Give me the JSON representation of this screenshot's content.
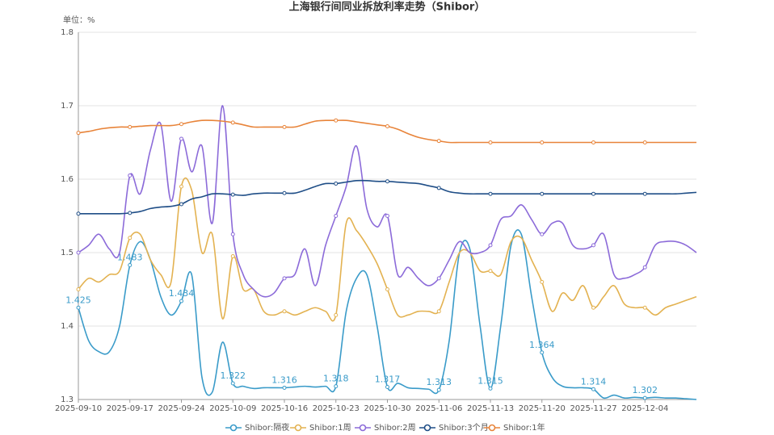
{
  "chart_data": {
    "type": "line",
    "title": "上海银行间同业拆放利率走势（Shibor）",
    "y_unit_label": "单位：%",
    "categories": [
      "2025-09-10",
      null,
      null,
      null,
      null,
      "2025-09-17",
      null,
      null,
      null,
      null,
      "2025-09-24",
      null,
      null,
      null,
      null,
      "2025-10-09",
      null,
      null,
      null,
      null,
      "2025-10-16",
      null,
      null,
      null,
      null,
      "2025-10-23",
      null,
      null,
      null,
      null,
      "2025-10-30",
      null,
      null,
      null,
      null,
      "2025-11-06",
      null,
      null,
      null,
      null,
      "2025-11-13",
      null,
      null,
      null,
      null,
      "2025-11-20",
      null,
      null,
      null,
      null,
      "2025-11-27",
      null,
      null,
      null,
      null,
      "2025-12-04",
      null,
      null,
      null,
      null,
      null
    ],
    "ylim": [
      1.3,
      1.8
    ],
    "yticks": [
      1.3,
      1.4,
      1.5,
      1.6,
      1.7,
      1.8
    ],
    "grid": true,
    "smooth": true,
    "legend": "bottom",
    "series": [
      {
        "name": "Shibor:隔夜",
        "color": "#3a9bc9",
        "labels": true,
        "values": [
          1.425,
          1.38,
          1.365,
          1.365,
          1.4,
          1.483,
          1.515,
          1.49,
          1.44,
          1.415,
          1.434,
          1.47,
          1.33,
          1.31,
          1.378,
          1.322,
          1.318,
          1.315,
          1.316,
          1.316,
          1.316,
          1.317,
          1.318,
          1.317,
          1.318,
          1.318,
          1.42,
          1.465,
          1.47,
          1.4,
          1.317,
          1.322,
          1.316,
          1.315,
          1.314,
          1.313,
          1.38,
          1.5,
          1.505,
          1.4,
          1.315,
          1.4,
          1.51,
          1.525,
          1.44,
          1.364,
          1.33,
          1.318,
          1.316,
          1.316,
          1.314,
          1.302,
          1.306,
          1.302,
          1.303,
          1.302,
          1.303,
          1.302,
          1.302,
          1.301,
          1.3
        ]
      },
      {
        "name": "Shibor:1周",
        "color": "#e3b251",
        "values": [
          1.45,
          1.465,
          1.46,
          1.47,
          1.475,
          1.52,
          1.525,
          1.49,
          1.47,
          1.46,
          1.59,
          1.585,
          1.5,
          1.525,
          1.41,
          1.495,
          1.45,
          1.45,
          1.42,
          1.415,
          1.42,
          1.415,
          1.42,
          1.425,
          1.42,
          1.415,
          1.54,
          1.53,
          1.51,
          1.485,
          1.45,
          1.415,
          1.415,
          1.42,
          1.42,
          1.42,
          1.46,
          1.5,
          1.5,
          1.475,
          1.475,
          1.47,
          1.515,
          1.52,
          1.49,
          1.46,
          1.42,
          1.445,
          1.435,
          1.455,
          1.425,
          1.44,
          1.455,
          1.43,
          1.425,
          1.425,
          1.415,
          1.425,
          1.43,
          1.435,
          1.44
        ]
      },
      {
        "name": "Shibor:2周",
        "color": "#8c6bd9",
        "values": [
          1.5,
          1.51,
          1.525,
          1.505,
          1.5,
          1.605,
          1.58,
          1.64,
          1.675,
          1.57,
          1.655,
          1.61,
          1.645,
          1.54,
          1.7,
          1.525,
          1.47,
          1.45,
          1.44,
          1.445,
          1.465,
          1.47,
          1.505,
          1.455,
          1.51,
          1.55,
          1.59,
          1.645,
          1.56,
          1.535,
          1.55,
          1.47,
          1.48,
          1.465,
          1.455,
          1.465,
          1.49,
          1.515,
          1.5,
          1.5,
          1.51,
          1.545,
          1.55,
          1.565,
          1.545,
          1.525,
          1.54,
          1.54,
          1.51,
          1.505,
          1.51,
          1.525,
          1.47,
          1.465,
          1.47,
          1.48,
          1.51,
          1.515,
          1.515,
          1.51,
          1.5
        ]
      },
      {
        "name": "Shibor:3个月",
        "color": "#1f4e87",
        "values": [
          1.553,
          1.553,
          1.553,
          1.553,
          1.553,
          1.554,
          1.556,
          1.56,
          1.562,
          1.563,
          1.566,
          1.573,
          1.576,
          1.58,
          1.58,
          1.579,
          1.578,
          1.58,
          1.581,
          1.581,
          1.581,
          1.581,
          1.585,
          1.59,
          1.594,
          1.594,
          1.596,
          1.598,
          1.598,
          1.597,
          1.597,
          1.596,
          1.595,
          1.594,
          1.591,
          1.588,
          1.583,
          1.581,
          1.58,
          1.58,
          1.58,
          1.58,
          1.58,
          1.58,
          1.58,
          1.58,
          1.58,
          1.58,
          1.58,
          1.58,
          1.58,
          1.58,
          1.58,
          1.58,
          1.58,
          1.58,
          1.58,
          1.58,
          1.58,
          1.581,
          1.582
        ]
      },
      {
        "name": "Shibor:1年",
        "color": "#e8843a",
        "values": [
          1.663,
          1.665,
          1.668,
          1.67,
          1.671,
          1.671,
          1.672,
          1.673,
          1.673,
          1.673,
          1.675,
          1.678,
          1.68,
          1.68,
          1.679,
          1.677,
          1.674,
          1.671,
          1.671,
          1.671,
          1.671,
          1.671,
          1.675,
          1.679,
          1.68,
          1.68,
          1.68,
          1.678,
          1.676,
          1.674,
          1.672,
          1.668,
          1.662,
          1.657,
          1.654,
          1.652,
          1.65,
          1.65,
          1.65,
          1.65,
          1.65,
          1.65,
          1.65,
          1.65,
          1.65,
          1.65,
          1.65,
          1.65,
          1.65,
          1.65,
          1.65,
          1.65,
          1.65,
          1.65,
          1.65,
          1.65,
          1.65,
          1.65,
          1.65,
          1.65,
          1.65
        ]
      }
    ]
  }
}
